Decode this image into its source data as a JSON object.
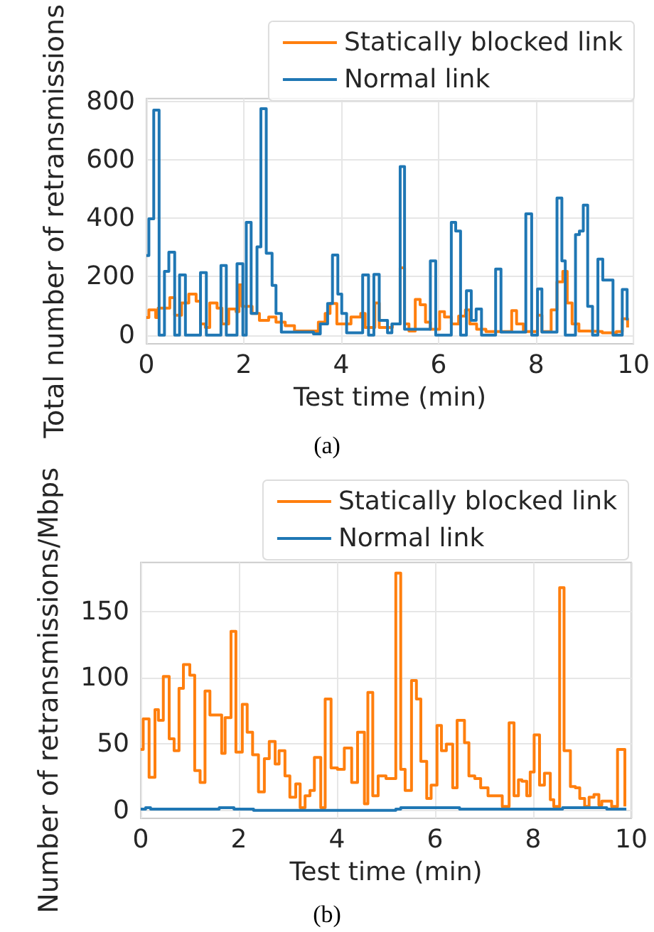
{
  "chart_data": [
    {
      "type": "step",
      "xlabel": "Test time (min)",
      "ylabel": "Total number of retransmissions",
      "annotations": [
        "(a)"
      ],
      "xlim": [
        0,
        10
      ],
      "xticks": [
        0,
        2,
        4,
        6,
        8,
        10
      ],
      "ylim": [
        -30,
        810
      ],
      "yticks": [
        0,
        200,
        400,
        600,
        800
      ],
      "grid": true,
      "legend": "top right",
      "series": [
        {
          "name": "Statically blocked link",
          "color": "#ff7f0e",
          "x": [
            0,
            0.05,
            0.19,
            0.24,
            0.48,
            0.58,
            0.72,
            0.87,
            1.02,
            1.11,
            1.21,
            1.3,
            1.45,
            1.55,
            1.69,
            1.84,
            1.9,
            1.96,
            2.17,
            2.32,
            2.51,
            2.66,
            2.85,
            3.04,
            3.24,
            3.53,
            3.67,
            3.77,
            3.91,
            4.2,
            4.4,
            4.49,
            4.69,
            4.78,
            4.87,
            5.05,
            5.21,
            5.3,
            5.39,
            5.52,
            5.62,
            5.73,
            5.83,
            6.02,
            6.12,
            6.26,
            6.41,
            6.55,
            6.64,
            6.78,
            6.97,
            7.26,
            7.5,
            7.6,
            7.74,
            8.03,
            8.12,
            8.31,
            8.43,
            8.55,
            8.64,
            8.74,
            8.88,
            9.08,
            9.36,
            9.65,
            9.77,
            9.88
          ],
          "values": [
            60,
            86,
            60,
            92,
            128,
            68,
            110,
            140,
            116,
            38,
            26,
            110,
            92,
            38,
            89,
            80,
            172,
            98,
            74,
            50,
            62,
            44,
            32,
            14,
            14,
            44,
            74,
            108,
            38,
            62,
            74,
            26,
            110,
            26,
            26,
            38,
            230,
            38,
            14,
            122,
            104,
            44,
            20,
            80,
            62,
            38,
            65,
            86,
            38,
            20,
            12,
            12,
            84,
            38,
            12,
            68,
            12,
            86,
            182,
            218,
            110,
            38,
            14,
            12,
            8,
            12,
            56,
            26
          ]
        },
        {
          "name": "Normal link",
          "color": "#1f77b4",
          "x": [
            0,
            0.05,
            0.15,
            0.26,
            0.37,
            0.46,
            0.58,
            0.68,
            0.8,
            1.11,
            1.23,
            1.53,
            1.64,
            1.86,
            1.98,
            2.05,
            2.15,
            2.27,
            2.35,
            2.46,
            2.58,
            2.66,
            2.77,
            3.43,
            3.57,
            3.72,
            3.82,
            3.93,
            4.01,
            4.11,
            4.44,
            4.56,
            4.67,
            4.78,
            4.87,
            4.95,
            5.04,
            5.21,
            5.3,
            5.83,
            5.94,
            6.26,
            6.35,
            6.45,
            6.57,
            6.67,
            6.77,
            6.88,
            7.17,
            7.28,
            7.79,
            7.91,
            8.03,
            8.12,
            8.43,
            8.53,
            8.6,
            8.81,
            8.89,
            8.97,
            9.06,
            9.16,
            9.27,
            9.37,
            9.46,
            9.58,
            9.77,
            9.87
          ],
          "values": [
            272,
            398,
            770,
            0,
            218,
            284,
            0,
            206,
            0,
            214,
            0,
            238,
            0,
            244,
            0,
            386,
            74,
            302,
            775,
            280,
            170,
            74,
            10,
            4,
            38,
            108,
            274,
            140,
            74,
            8,
            206,
            0,
            208,
            50,
            50,
            8,
            38,
            577,
            20,
            254,
            0,
            386,
            356,
            0,
            152,
            50,
            89,
            0,
            226,
            10,
            415,
            0,
            158,
            10,
            469,
            254,
            0,
            344,
            356,
            445,
            98,
            0,
            260,
            188,
            188,
            0,
            156,
            50
          ]
        }
      ]
    },
    {
      "type": "step",
      "xlabel": "Test time (min)",
      "ylabel": "Number of retransmissions/Mbps",
      "annotations": [
        "(b)"
      ],
      "xlim": [
        0,
        10
      ],
      "xticks": [
        0,
        2,
        4,
        6,
        8,
        10
      ],
      "ylim": [
        -6,
        187
      ],
      "yticks": [
        0,
        50,
        100,
        150
      ],
      "grid": true,
      "legend": "top right",
      "series": [
        {
          "name": "Statically blocked link",
          "color": "#ff7f0e",
          "x": [
            0,
            0.05,
            0.17,
            0.29,
            0.36,
            0.46,
            0.58,
            0.68,
            0.78,
            0.87,
            1.0,
            1.1,
            1.21,
            1.31,
            1.41,
            1.65,
            1.72,
            1.84,
            1.94,
            2.07,
            2.17,
            2.28,
            2.4,
            2.52,
            2.62,
            2.74,
            2.82,
            2.94,
            3.04,
            3.16,
            3.25,
            3.35,
            3.45,
            3.54,
            3.67,
            3.76,
            3.88,
            4.01,
            4.15,
            4.3,
            4.42,
            4.56,
            4.63,
            4.73,
            4.84,
            5.0,
            5.2,
            5.3,
            5.39,
            5.52,
            5.62,
            5.71,
            5.83,
            5.92,
            6.04,
            6.13,
            6.23,
            6.36,
            6.45,
            6.6,
            6.69,
            6.81,
            6.93,
            7.08,
            7.37,
            7.51,
            7.61,
            7.7,
            7.77,
            7.87,
            7.94,
            8.02,
            8.13,
            8.23,
            8.35,
            8.42,
            8.54,
            8.63,
            8.76,
            8.86,
            8.95,
            9.05,
            9.14,
            9.24,
            9.34,
            9.4,
            9.6,
            9.72,
            9.87
          ],
          "values": [
            46,
            69,
            25,
            76,
            68,
            101,
            54,
            45,
            92,
            110,
            102,
            30,
            21,
            90,
            72,
            43,
            70,
            135,
            44,
            80,
            59,
            42,
            14,
            39,
            52,
            35,
            45,
            26,
            10,
            20,
            2,
            11,
            15,
            40,
            2,
            84,
            32,
            31,
            47,
            21,
            59,
            5,
            89,
            11,
            26,
            24,
            179,
            31,
            15,
            98,
            84,
            37,
            9,
            19,
            64,
            45,
            50,
            17,
            68,
            51,
            26,
            24,
            17,
            11,
            3,
            66,
            11,
            23,
            22,
            11,
            29,
            57,
            19,
            28,
            8,
            3,
            168,
            45,
            18,
            17,
            9,
            3,
            10,
            12,
            4,
            7,
            3,
            46,
            3
          ]
        },
        {
          "name": "Normal link",
          "color": "#1f77b4",
          "x": [
            0,
            0.1,
            0.2,
            0.6,
            1.2,
            1.6,
            1.9,
            2.3,
            3.5,
            4.5,
            5.2,
            5.3,
            6.5,
            7.8,
            8.5,
            8.6,
            9.5,
            9.9
          ],
          "values": [
            1,
            2,
            1,
            1,
            1,
            2,
            1,
            0,
            0,
            0,
            1,
            2,
            1,
            1,
            1,
            2,
            1,
            1
          ]
        }
      ]
    }
  ]
}
